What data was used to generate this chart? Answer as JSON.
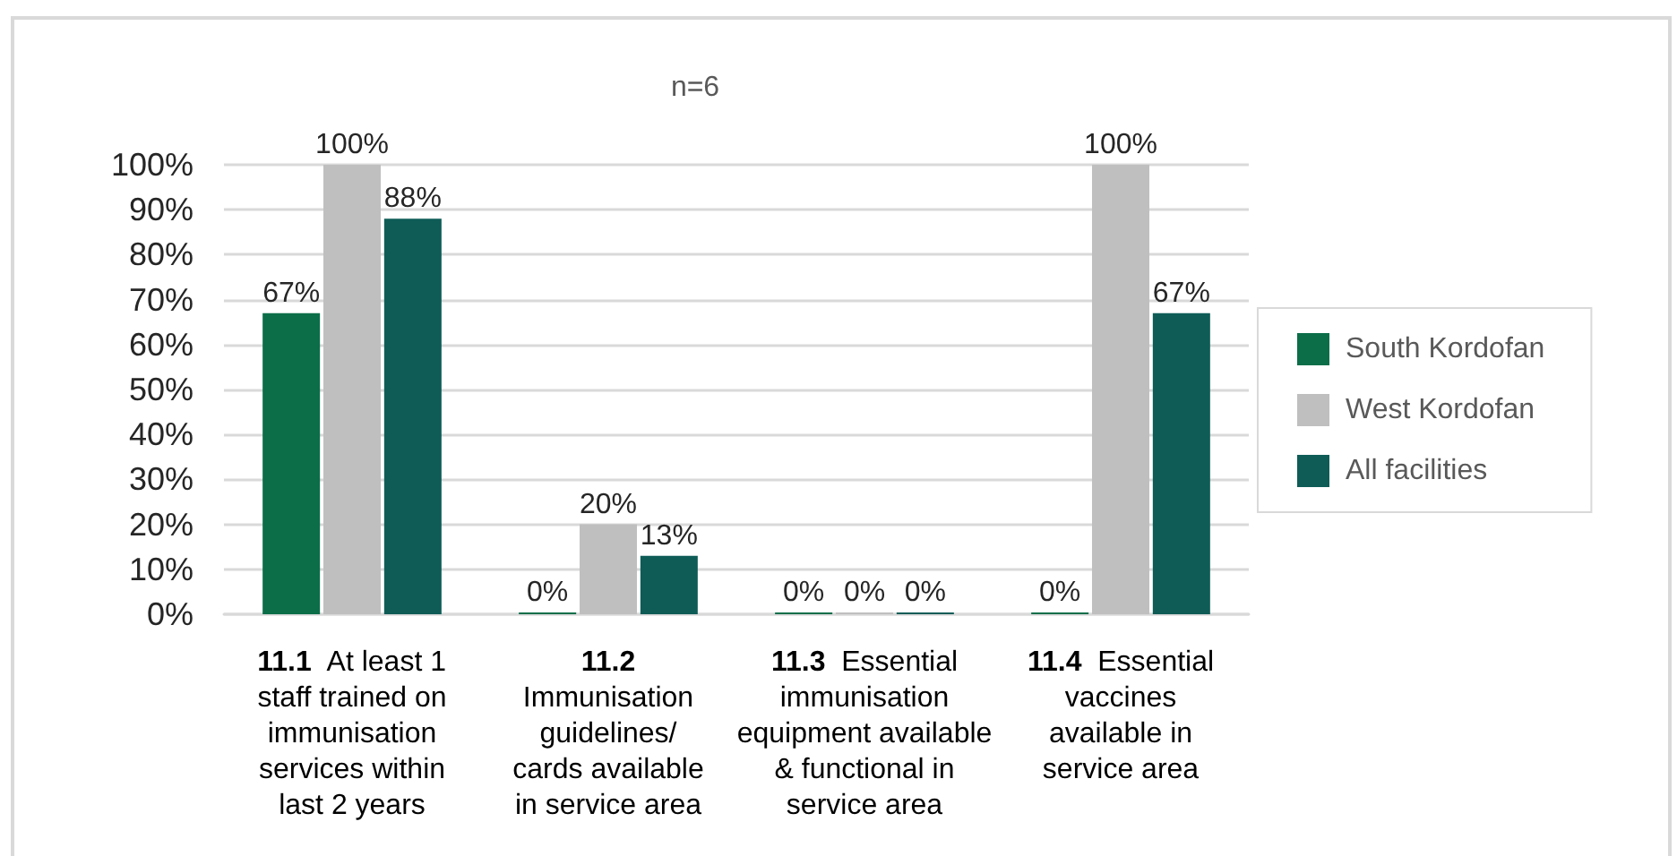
{
  "chart_data": {
    "type": "bar",
    "title": "n=6",
    "categories": [
      "11.1 At least 1\nstaff trained on\nimmunisation\nservices within\nlast 2 years",
      "11.2\nImmunisation\nguidelines/\ncards available\nin service area",
      "11.3 Essential\nimmunisation\nequipment available\n& functional in\nservice area",
      "11.4 Essential\nvaccines\navailable in\nservice area"
    ],
    "series": [
      {
        "name": "South Kordofan",
        "color": "#0b6e49",
        "values": [
          67,
          0,
          0,
          0
        ],
        "value_labels": [
          "67%",
          "0%",
          "0%",
          "0%"
        ]
      },
      {
        "name": "West Kordofan",
        "color": "#bfbfbf",
        "values": [
          100,
          20,
          0,
          100
        ],
        "value_labels": [
          "100%",
          "20%",
          "0%",
          "100%"
        ]
      },
      {
        "name": "All facilities",
        "color": "#0f5c57",
        "values": [
          88,
          13,
          0,
          67
        ],
        "value_labels": [
          "88%",
          "13%",
          "0%",
          "67%"
        ]
      }
    ],
    "ylim": [
      0,
      100
    ],
    "yticks": [
      {
        "value": 0,
        "label": "0%"
      },
      {
        "value": 10,
        "label": "10%"
      },
      {
        "value": 20,
        "label": "20%"
      },
      {
        "value": 30,
        "label": "30%"
      },
      {
        "value": 40,
        "label": "40%"
      },
      {
        "value": 50,
        "label": "50%"
      },
      {
        "value": 60,
        "label": "60%"
      },
      {
        "value": 70,
        "label": "70%"
      },
      {
        "value": 80,
        "label": "80%"
      },
      {
        "value": 90,
        "label": "90%"
      },
      {
        "value": 100,
        "label": "100%"
      }
    ],
    "grid": "y",
    "legend": "right"
  }
}
